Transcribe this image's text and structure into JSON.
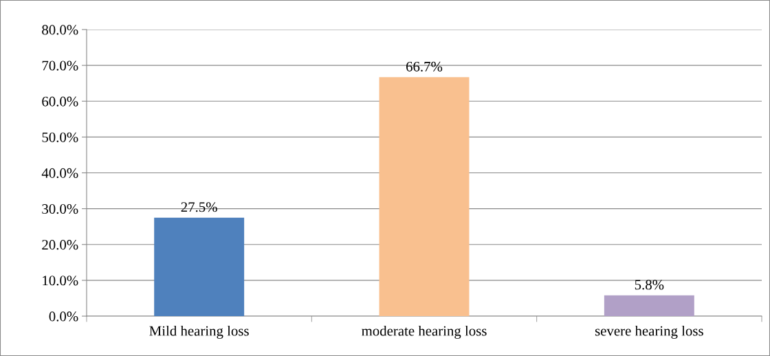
{
  "chart_data": {
    "type": "bar",
    "categories": [
      "Mild hearing loss",
      "moderate hearing loss",
      "severe hearing loss"
    ],
    "values": [
      27.5,
      66.7,
      5.8
    ],
    "colors": [
      "#4f81bd",
      "#f9c08f",
      "#b1a0c7"
    ],
    "value_labels": [
      "27.5%",
      "66.7%",
      "5.8%"
    ],
    "ylim": [
      0,
      80
    ],
    "yticks": [
      {
        "value": 0,
        "label": "0.0%"
      },
      {
        "value": 10,
        "label": "10.0%"
      },
      {
        "value": 20,
        "label": "20.0%"
      },
      {
        "value": 30,
        "label": "30.0%"
      },
      {
        "value": 40,
        "label": "40.0%"
      },
      {
        "value": 50,
        "label": "50.0%"
      },
      {
        "value": 60,
        "label": "60.0%"
      },
      {
        "value": 70,
        "label": "70.0%"
      },
      {
        "value": 80,
        "label": "80.0%"
      }
    ],
    "grid": "y",
    "legend": false
  }
}
